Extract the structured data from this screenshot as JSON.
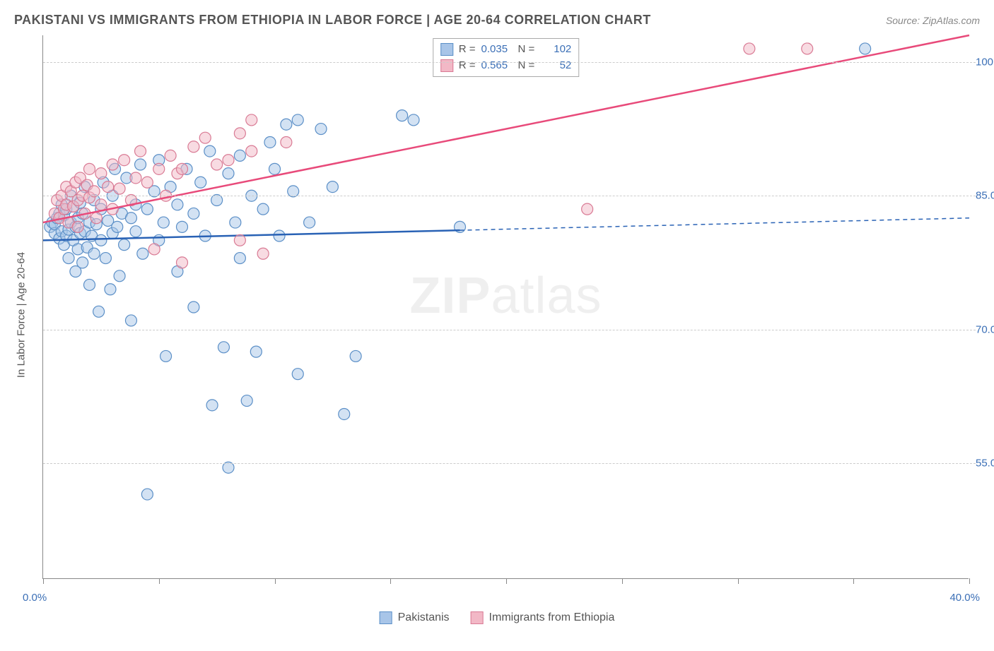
{
  "title": "PAKISTANI VS IMMIGRANTS FROM ETHIOPIA IN LABOR FORCE | AGE 20-64 CORRELATION CHART",
  "source": "Source: ZipAtlas.com",
  "y_axis_title": "In Labor Force | Age 20-64",
  "watermark_bold": "ZIP",
  "watermark_rest": "atlas",
  "chart": {
    "type": "scatter",
    "xlim": [
      0,
      40
    ],
    "ylim": [
      42,
      103
    ],
    "x_ticks": [
      0,
      5,
      10,
      15,
      20,
      25,
      30,
      35,
      40
    ],
    "x_tick_labels": {
      "0": "0.0%",
      "40": "40.0%"
    },
    "y_ticks": [
      55,
      70,
      85,
      100
    ],
    "y_tick_labels": {
      "55": "55.0%",
      "70": "70.0%",
      "85": "85.0%",
      "100": "100.0%"
    },
    "background_color": "#ffffff",
    "grid_color": "#cccccc",
    "axis_color": "#888888",
    "label_color": "#3b6fb6",
    "marker_radius": 8,
    "marker_opacity": 0.5,
    "series": [
      {
        "key": "pakistanis",
        "label": "Pakistanis",
        "color_fill": "#a8c5e8",
        "color_stroke": "#5b8fc7",
        "r": "0.035",
        "n": "102",
        "regression": {
          "x1": 0,
          "y1": 80.0,
          "x2": 40,
          "y2": 82.5,
          "solid_until_x": 18,
          "color": "#2962b5",
          "width": 2.5
        },
        "points": [
          [
            0.3,
            81.5
          ],
          [
            0.4,
            82.0
          ],
          [
            0.5,
            80.8
          ],
          [
            0.5,
            81.8
          ],
          [
            0.6,
            82.5
          ],
          [
            0.7,
            80.2
          ],
          [
            0.7,
            83.0
          ],
          [
            0.8,
            81.0
          ],
          [
            0.8,
            84.0
          ],
          [
            0.9,
            79.5
          ],
          [
            0.9,
            82.8
          ],
          [
            1.0,
            80.5
          ],
          [
            1.0,
            83.5
          ],
          [
            1.1,
            81.2
          ],
          [
            1.1,
            78.0
          ],
          [
            1.2,
            82.0
          ],
          [
            1.2,
            85.0
          ],
          [
            1.3,
            80.0
          ],
          [
            1.3,
            83.8
          ],
          [
            1.4,
            81.5
          ],
          [
            1.4,
            76.5
          ],
          [
            1.5,
            82.5
          ],
          [
            1.5,
            79.0
          ],
          [
            1.6,
            84.2
          ],
          [
            1.6,
            80.8
          ],
          [
            1.7,
            77.5
          ],
          [
            1.7,
            83.0
          ],
          [
            1.8,
            81.0
          ],
          [
            1.8,
            86.0
          ],
          [
            1.9,
            79.2
          ],
          [
            2.0,
            82.0
          ],
          [
            2.0,
            75.0
          ],
          [
            2.1,
            80.5
          ],
          [
            2.2,
            84.5
          ],
          [
            2.2,
            78.5
          ],
          [
            2.3,
            81.8
          ],
          [
            2.4,
            72.0
          ],
          [
            2.5,
            83.5
          ],
          [
            2.5,
            80.0
          ],
          [
            2.6,
            86.5
          ],
          [
            2.7,
            78.0
          ],
          [
            2.8,
            82.2
          ],
          [
            2.9,
            74.5
          ],
          [
            3.0,
            85.0
          ],
          [
            3.0,
            80.8
          ],
          [
            3.1,
            88.0
          ],
          [
            3.2,
            81.5
          ],
          [
            3.3,
            76.0
          ],
          [
            3.4,
            83.0
          ],
          [
            3.5,
            79.5
          ],
          [
            3.6,
            87.0
          ],
          [
            3.8,
            82.5
          ],
          [
            3.8,
            71.0
          ],
          [
            4.0,
            84.0
          ],
          [
            4.0,
            81.0
          ],
          [
            4.2,
            88.5
          ],
          [
            4.3,
            78.5
          ],
          [
            4.5,
            83.5
          ],
          [
            4.5,
            51.5
          ],
          [
            4.8,
            85.5
          ],
          [
            5.0,
            80.0
          ],
          [
            5.0,
            89.0
          ],
          [
            5.2,
            82.0
          ],
          [
            5.3,
            67.0
          ],
          [
            5.5,
            86.0
          ],
          [
            5.8,
            84.0
          ],
          [
            5.8,
            76.5
          ],
          [
            6.0,
            81.5
          ],
          [
            6.2,
            88.0
          ],
          [
            6.5,
            83.0
          ],
          [
            6.5,
            72.5
          ],
          [
            6.8,
            86.5
          ],
          [
            7.0,
            80.5
          ],
          [
            7.2,
            90.0
          ],
          [
            7.3,
            61.5
          ],
          [
            7.5,
            84.5
          ],
          [
            7.8,
            68.0
          ],
          [
            8.0,
            87.5
          ],
          [
            8.0,
            54.5
          ],
          [
            8.3,
            82.0
          ],
          [
            8.5,
            89.5
          ],
          [
            8.5,
            78.0
          ],
          [
            8.8,
            62.0
          ],
          [
            9.0,
            85.0
          ],
          [
            9.2,
            67.5
          ],
          [
            9.5,
            83.5
          ],
          [
            9.8,
            91.0
          ],
          [
            10.0,
            88.0
          ],
          [
            10.2,
            80.5
          ],
          [
            10.5,
            93.0
          ],
          [
            10.8,
            85.5
          ],
          [
            11.0,
            65.0
          ],
          [
            11.0,
            93.5
          ],
          [
            11.5,
            82.0
          ],
          [
            12.0,
            92.5
          ],
          [
            12.5,
            86.0
          ],
          [
            13.0,
            60.5
          ],
          [
            13.5,
            67.0
          ],
          [
            15.5,
            94.0
          ],
          [
            16.0,
            93.5
          ],
          [
            18.0,
            81.5
          ],
          [
            35.5,
            101.5
          ]
        ]
      },
      {
        "key": "ethiopia",
        "label": "Immigrants from Ethiopia",
        "color_fill": "#f2b8c6",
        "color_stroke": "#d97a94",
        "r": "0.565",
        "n": "52",
        "regression": {
          "x1": 0,
          "y1": 82.0,
          "x2": 40,
          "y2": 103.0,
          "solid_until_x": 40,
          "color": "#e84a7a",
          "width": 2.5
        },
        "points": [
          [
            0.5,
            83.0
          ],
          [
            0.6,
            84.5
          ],
          [
            0.7,
            82.5
          ],
          [
            0.8,
            85.0
          ],
          [
            0.9,
            83.5
          ],
          [
            1.0,
            86.0
          ],
          [
            1.0,
            84.0
          ],
          [
            1.1,
            82.0
          ],
          [
            1.2,
            85.5
          ],
          [
            1.3,
            83.8
          ],
          [
            1.4,
            86.5
          ],
          [
            1.5,
            84.5
          ],
          [
            1.5,
            81.5
          ],
          [
            1.6,
            87.0
          ],
          [
            1.7,
            85.0
          ],
          [
            1.8,
            83.0
          ],
          [
            1.9,
            86.2
          ],
          [
            2.0,
            84.8
          ],
          [
            2.0,
            88.0
          ],
          [
            2.2,
            85.5
          ],
          [
            2.3,
            82.5
          ],
          [
            2.5,
            87.5
          ],
          [
            2.5,
            84.0
          ],
          [
            2.8,
            86.0
          ],
          [
            3.0,
            88.5
          ],
          [
            3.0,
            83.5
          ],
          [
            3.3,
            85.8
          ],
          [
            3.5,
            89.0
          ],
          [
            3.8,
            84.5
          ],
          [
            4.0,
            87.0
          ],
          [
            4.2,
            90.0
          ],
          [
            4.5,
            86.5
          ],
          [
            4.8,
            79.0
          ],
          [
            5.0,
            88.0
          ],
          [
            5.3,
            85.0
          ],
          [
            5.5,
            89.5
          ],
          [
            5.8,
            87.5
          ],
          [
            6.0,
            88.0
          ],
          [
            6.0,
            77.5
          ],
          [
            6.5,
            90.5
          ],
          [
            7.0,
            91.5
          ],
          [
            7.5,
            88.5
          ],
          [
            8.0,
            89.0
          ],
          [
            8.5,
            92.0
          ],
          [
            8.5,
            80.0
          ],
          [
            9.0,
            90.0
          ],
          [
            9.0,
            93.5
          ],
          [
            9.5,
            78.5
          ],
          [
            10.5,
            91.0
          ],
          [
            23.5,
            83.5
          ],
          [
            30.5,
            101.5
          ],
          [
            33.0,
            101.5
          ]
        ]
      }
    ]
  },
  "legend_top": {
    "r_label": "R =",
    "n_label": "N ="
  }
}
